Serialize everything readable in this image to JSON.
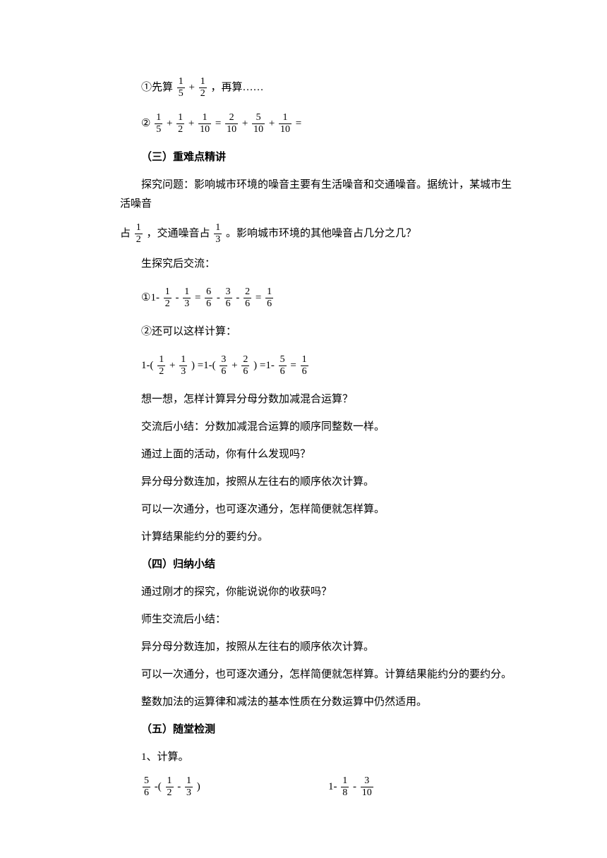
{
  "p1_prefix": "①先算",
  "p1_f1n": "1",
  "p1_f1d": "5",
  "p1_op1": "+",
  "p1_f2n": "1",
  "p1_f2d": "2",
  "p1_suffix": "，再算……",
  "p2_prefix": "②",
  "p2_f1n": "1",
  "p2_f1d": "5",
  "p2_op1": "+",
  "p2_f2n": "1",
  "p2_f2d": "2",
  "p2_op2": "+",
  "p2_f3n": "1",
  "p2_f3d": "10",
  "p2_op3": "=",
  "p2_f4n": "2",
  "p2_f4d": "10",
  "p2_op4": "+",
  "p2_f5n": "5",
  "p2_f5d": "10",
  "p2_op5": "+",
  "p2_f6n": "1",
  "p2_f6d": "10",
  "p2_op6": "=",
  "heading3": "（三）重难点精讲",
  "p3": "探究问题：影响城市环境的噪音主要有生活噪音和交通噪音。据统计，某城市生活噪音",
  "p4_prefix": "占",
  "p4_f1n": "1",
  "p4_f1d": "2",
  "p4_mid": "，交通噪音占",
  "p4_f2n": "1",
  "p4_f2d": "3",
  "p4_suffix": "。影响城市环境的其他噪音占几分之几？",
  "p5": "生探究后交流：",
  "p6_prefix": "①1-",
  "p6_f1n": "1",
  "p6_f1d": "2",
  "p6_op1": "-",
  "p6_f2n": "1",
  "p6_f2d": "3",
  "p6_op2": "=",
  "p6_f3n": "6",
  "p6_f3d": "6",
  "p6_op3": "-",
  "p6_f4n": "3",
  "p6_f4d": "6",
  "p6_op4": "-",
  "p6_f5n": "2",
  "p6_f5d": "6",
  "p6_op5": "=",
  "p6_f6n": "1",
  "p6_f6d": "6",
  "p7": "②还可以这样计算：",
  "p8_prefix": "1-(",
  "p8_f1n": "1",
  "p8_f1d": "2",
  "p8_op1": "+",
  "p8_f2n": "1",
  "p8_f2d": "3",
  "p8_rp1": ")",
  "p8_op2": "=1-(",
  "p8_f3n": "3",
  "p8_f3d": "6",
  "p8_op3": "+",
  "p8_f4n": "2",
  "p8_f4d": "6",
  "p8_rp2": ")",
  "p8_op4": "=1-",
  "p8_f5n": "5",
  "p8_f5d": "6",
  "p8_op5": "=",
  "p8_f6n": "1",
  "p8_f6d": "6",
  "p9": "想一想，怎样计算异分母分数加减混合运算？",
  "p10": "交流后小结：分数加减混合运算的顺序同整数一样。",
  "p11": "通过上面的活动，你有什么发现吗？",
  "p12": "异分母分数连加，按照从左往右的顺序依次计算。",
  "p13": "可以一次通分，也可逐次通分，怎样简便就怎样算。",
  "p14": "计算结果能约分的要约分。",
  "heading4": "（四）归纳小结",
  "p15": "通过刚才的探究，你能说说你的收获吗？",
  "p16": "师生交流后小结：",
  "p17": "异分母分数连加，按照从左往右的顺序依次计算。",
  "p18": "可以一次通分，也可逐次通分，怎样简便就怎样算。计算结果能约分的要约分。",
  "p19": "整数加法的运算律和减法的基本性质在分数运算中仍然适用。",
  "heading5": "（五）随堂检测",
  "p20": "1、计算。",
  "p21_f1n": "5",
  "p21_f1d": "6",
  "p21_op1": "-(",
  "p21_f2n": "1",
  "p21_f2d": "2",
  "p21_op2": "-",
  "p21_f3n": "1",
  "p21_f3d": "3",
  "p21_rp": ")",
  "p22_prefix": "1-",
  "p22_f1n": "1",
  "p22_f1d": "8",
  "p22_op1": "-",
  "p22_f2n": "3",
  "p22_f2d": "10"
}
